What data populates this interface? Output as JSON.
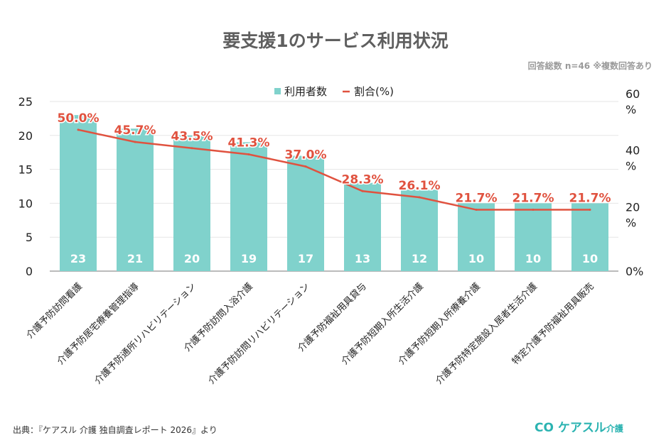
{
  "title": "要支援1のサービス利用状況",
  "note": "回答総数 n=46 ※複数回答あり",
  "source": "出典：『ケアスル 介護 独自調査レポート 2026』より",
  "logo": {
    "mark": "CO",
    "name": "ケアスル",
    "sub": "介護"
  },
  "chart_data": {
    "type": "bar+line",
    "categories": [
      "介護予防訪問看護",
      "介護予防居宅療養管理指導",
      "介護予防通所リハビリテーション",
      "介護予防訪問入浴介護",
      "介護予防訪問リハビリテーション",
      "介護予防福祉用具貸与",
      "介護予防短期入所生活介護",
      "介護予防短期入所療養介護",
      "介護予防特定施設入居者生活介護",
      "特定介護予防福祉用具販売"
    ],
    "series": [
      {
        "name": "利用者数",
        "type": "bar",
        "axis": "left",
        "color": "#80d2cc",
        "values": [
          23,
          21,
          20,
          19,
          17,
          13,
          12,
          10,
          10,
          10
        ]
      },
      {
        "name": "割合(%)",
        "type": "line",
        "axis": "right",
        "color": "#e0523f",
        "values": [
          50.0,
          45.7,
          43.5,
          41.3,
          37.0,
          28.3,
          26.1,
          21.7,
          21.7,
          21.7
        ],
        "labels": [
          "50.0%",
          "45.7%",
          "43.5%",
          "41.3%",
          "37.0%",
          "28.3%",
          "26.1%",
          "21.7%",
          "21.7%",
          "21.7%"
        ]
      }
    ],
    "left_axis": {
      "ylim": [
        0,
        25
      ],
      "ticks": [
        "0",
        "5",
        "10",
        "15",
        "20",
        "25"
      ]
    },
    "right_axis": {
      "ylim": [
        0,
        60
      ],
      "ticks": [
        "0%",
        "20 %",
        "40 %",
        "60 %"
      ]
    },
    "legend": {
      "position": "top",
      "items": [
        "利用者数",
        "割合(%)"
      ]
    },
    "grid": true
  }
}
